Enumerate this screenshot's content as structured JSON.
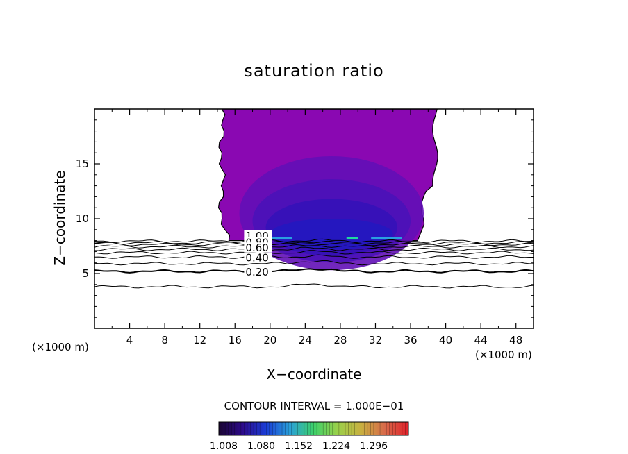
{
  "chart_data": {
    "type": "contour",
    "title": "saturation ratio",
    "xlabel": "X−coordinate",
    "ylabel": "Z−coordinate",
    "x_unit_left": "(×1000 m)",
    "x_unit_right": "(×1000 m)",
    "xlim": [
      0,
      50
    ],
    "ylim": [
      0,
      20
    ],
    "x_ticks": [
      4,
      8,
      12,
      16,
      20,
      24,
      28,
      32,
      36,
      40,
      44,
      48
    ],
    "x_tick_labels": [
      "4",
      "8",
      "12",
      "16",
      "20",
      "24",
      "28",
      "32",
      "36",
      "40",
      "44",
      "48"
    ],
    "y_ticks": [
      5,
      10,
      15
    ],
    "y_tick_labels": [
      "5",
      "10",
      "15"
    ],
    "contour_lines": [
      {
        "level": 0.1,
        "z": 3.8
      },
      {
        "level": 0.2,
        "z": 5.2
      },
      {
        "level": 0.3,
        "z": 5.9
      },
      {
        "level": 0.4,
        "z": 6.5
      },
      {
        "level": 0.5,
        "z": 6.9
      },
      {
        "level": 0.6,
        "z": 7.2
      },
      {
        "level": 0.7,
        "z": 7.45
      },
      {
        "level": 0.8,
        "z": 7.65
      },
      {
        "level": 0.9,
        "z": 7.8
      },
      {
        "level": 1.0,
        "z": 7.95
      }
    ],
    "contour_labels": [
      {
        "text": "1.00",
        "x": 17.2,
        "z": 8.3
      },
      {
        "text": "0.80",
        "x": 17.2,
        "z": 7.7
      },
      {
        "text": "0.60",
        "x": 17.2,
        "z": 7.2
      },
      {
        "text": "0.40",
        "x": 17.2,
        "z": 6.3
      },
      {
        "text": "0.20",
        "x": 17.2,
        "z": 5.0
      }
    ],
    "supersaturated_region": {
      "x_range": [
        14.5,
        39
      ],
      "z_range": [
        8,
        20
      ],
      "color": "#8a08b2"
    },
    "contour_interval_text": "CONTOUR INTERVAL = 1.000E−01",
    "colorbar": {
      "ticks": [
        "1.008",
        "1.080",
        "1.152",
        "1.224",
        "1.296"
      ],
      "colors": [
        "#1a0533",
        "#2d0a8a",
        "#1a3dd6",
        "#2aa0d8",
        "#3dd06a",
        "#9ad04a",
        "#c8b040",
        "#d86a4a",
        "#e0202a"
      ]
    }
  }
}
